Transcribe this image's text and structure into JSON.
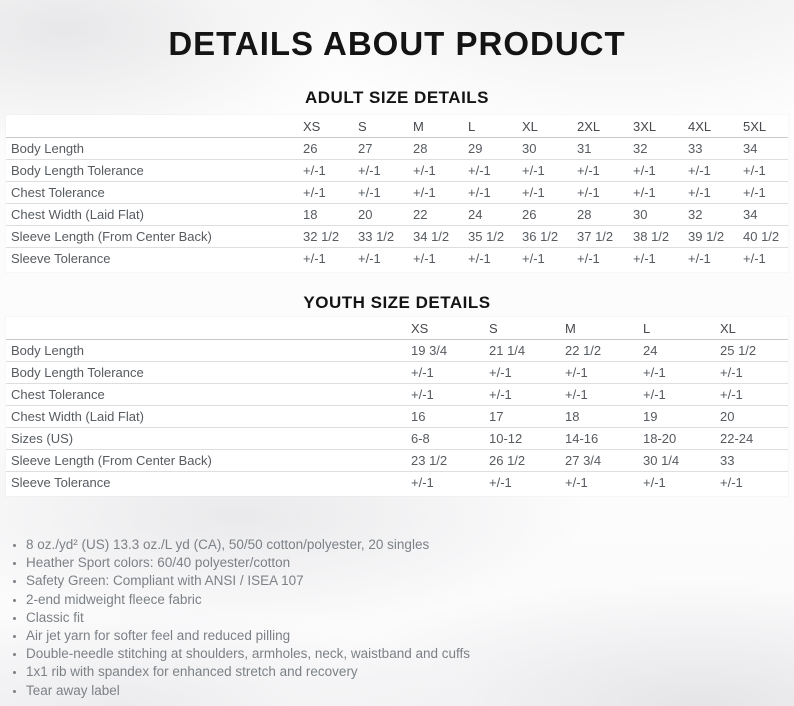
{
  "page": {
    "title": "DETAILS ABOUT PRODUCT"
  },
  "adult": {
    "heading": "ADULT SIZE DETAILS",
    "columns": [
      "XS",
      "S",
      "M",
      "L",
      "XL",
      "2XL",
      "3XL",
      "4XL",
      "5XL"
    ],
    "rows": [
      {
        "label": "Body Length",
        "values": [
          "26",
          "27",
          "28",
          "29",
          "30",
          "31",
          "32",
          "33",
          "34"
        ]
      },
      {
        "label": "Body Length Tolerance",
        "values": [
          "+/-1",
          "+/-1",
          "+/-1",
          "+/-1",
          "+/-1",
          "+/-1",
          "+/-1",
          "+/-1",
          "+/-1"
        ]
      },
      {
        "label": "Chest Tolerance",
        "values": [
          "+/-1",
          "+/-1",
          "+/-1",
          "+/-1",
          "+/-1",
          "+/-1",
          "+/-1",
          "+/-1",
          "+/-1"
        ]
      },
      {
        "label": "Chest Width (Laid Flat)",
        "values": [
          "18",
          "20",
          "22",
          "24",
          "26",
          "28",
          "30",
          "32",
          "34"
        ]
      },
      {
        "label": "Sleeve Length (From Center Back)",
        "values": [
          "32 1/2",
          "33 1/2",
          "34 1/2",
          "35 1/2",
          "36 1/2",
          "37 1/2",
          "38 1/2",
          "39 1/2",
          "40 1/2"
        ]
      },
      {
        "label": "Sleeve Tolerance",
        "values": [
          "+/-1",
          "+/-1",
          "+/-1",
          "+/-1",
          "+/-1",
          "+/-1",
          "+/-1",
          "+/-1",
          "+/-1"
        ]
      }
    ]
  },
  "youth": {
    "heading": "YOUTH SIZE DETAILS",
    "columns": [
      "XS",
      "S",
      "M",
      "L",
      "XL"
    ],
    "rows": [
      {
        "label": "Body Length",
        "values": [
          "19 3/4",
          "21 1/4",
          "22 1/2",
          "24",
          "25 1/2"
        ]
      },
      {
        "label": "Body Length Tolerance",
        "values": [
          "+/-1",
          "+/-1",
          "+/-1",
          "+/-1",
          "+/-1"
        ]
      },
      {
        "label": "Chest Tolerance",
        "values": [
          "+/-1",
          "+/-1",
          "+/-1",
          "+/-1",
          "+/-1"
        ]
      },
      {
        "label": "Chest Width (Laid Flat)",
        "values": [
          "16",
          "17",
          "18",
          "19",
          "20"
        ]
      },
      {
        "label": "Sizes (US)",
        "values": [
          "6-8",
          "10-12",
          "14-16",
          "18-20",
          "22-24"
        ]
      },
      {
        "label": "Sleeve Length (From Center Back)",
        "values": [
          "23 1/2",
          "26 1/2",
          "27 3/4",
          "30 1/4",
          "33"
        ]
      },
      {
        "label": "Sleeve Tolerance",
        "values": [
          "+/-1",
          "+/-1",
          "+/-1",
          "+/-1",
          "+/-1"
        ]
      }
    ]
  },
  "features": [
    "8 oz./yd² (US) 13.3 oz./L yd (CA), 50/50 cotton/polyester, 20 singles",
    "Heather Sport colors: 60/40 polyester/cotton",
    "Safety Green: Compliant with ANSI / ISEA 107",
    "2-end midweight fleece fabric",
    "Classic fit",
    "Air jet yarn for softer feel and reduced pilling",
    "Double-needle stitching at shoulders, armholes, neck, waistband and cuffs",
    "1x1 rib with spandex for enhanced stretch and recovery",
    "Tear away label"
  ],
  "colors": {
    "heading_text": "#141414",
    "table_header_text": "#46494e",
    "table_body_text": "#565b60",
    "table_border": "#dedede",
    "feature_text": "#7c8186",
    "card_background": "#ffffff"
  }
}
